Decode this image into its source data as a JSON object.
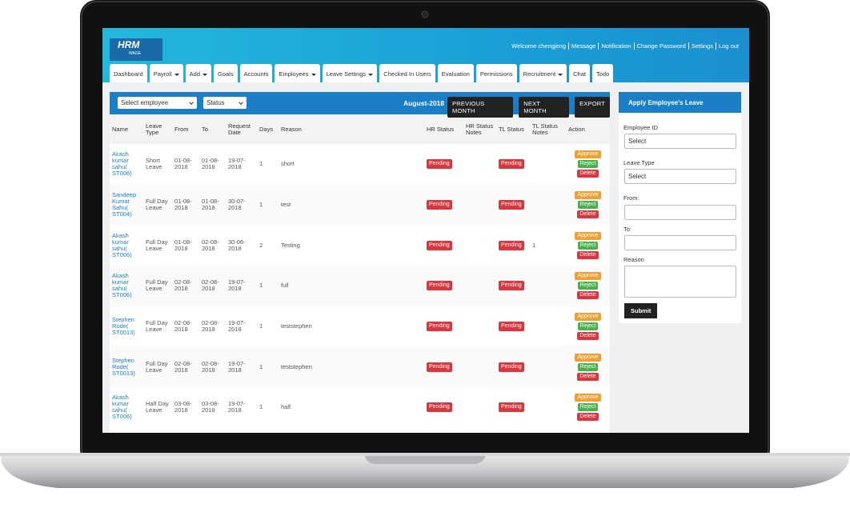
{
  "header": {
    "logo": "HRM",
    "logo_sub": "WAGE",
    "welcome": "Welcome chengjeng",
    "links": [
      "Message",
      "Notification",
      "Change Password",
      "Settings",
      "Log out"
    ]
  },
  "tabs": [
    {
      "label": "Dashboard",
      "dropdown": false
    },
    {
      "label": "Payroll",
      "dropdown": true
    },
    {
      "label": "Add",
      "dropdown": true
    },
    {
      "label": "Goals",
      "dropdown": false
    },
    {
      "label": "Accounts",
      "dropdown": false
    },
    {
      "label": "Employees",
      "dropdown": true
    },
    {
      "label": "Leave Settings",
      "dropdown": true
    },
    {
      "label": "Checked In Users",
      "dropdown": false
    },
    {
      "label": "Evaluation",
      "dropdown": false
    },
    {
      "label": "Permissions",
      "dropdown": false
    },
    {
      "label": "Recruitment",
      "dropdown": true
    },
    {
      "label": "Chat",
      "dropdown": false
    },
    {
      "label": "Todo",
      "dropdown": false
    }
  ],
  "toolbar": {
    "employee_select": "Select employee",
    "status_select": "Status",
    "month": "August-2018",
    "buttons": [
      "PREVIOUS MONTH",
      "NEXT MONTH",
      "EXPORT"
    ]
  },
  "table": {
    "columns": [
      "Name",
      "Leave Type",
      "From",
      "To",
      "Request Date",
      "Days",
      "Reason",
      "HR Status",
      "HR Status Notes",
      "TL Status",
      "TL Status Notes",
      "Action"
    ],
    "actions": [
      "Approve",
      "Reject",
      "Delete"
    ],
    "rows": [
      {
        "name": "Akash kumar sahu( ST006)",
        "leave_type": "Short Leave",
        "from": "01-08-2018",
        "to": "01-08-2018",
        "request_date": "19-07-2018",
        "days": 1,
        "reason": "short",
        "hr_status": "Pending",
        "tl_status": "Pending"
      },
      {
        "name": "Sandeep Kumar Sahu( ST004)",
        "leave_type": "Full Day Leave",
        "from": "01-08-2018",
        "to": "01-08-2018",
        "request_date": "30-07-2018",
        "days": 1,
        "reason": "test",
        "hr_status": "Pending",
        "tl_status": "Pending"
      },
      {
        "name": "Akash kumar sahu( ST006)",
        "leave_type": "Full Day Leave",
        "from": "01-08-2018",
        "to": "02-08-2018",
        "request_date": "30-06-2018",
        "days": 2,
        "reason": "Testing",
        "hr_status": "Pending",
        "tl_status": "Pending",
        "tl_status_notes": "1"
      },
      {
        "name": "Akash kumar sahu( ST006)",
        "leave_type": "Full Day Leave",
        "from": "02-08-2018",
        "to": "02-08-2018",
        "request_date": "19-07-2018",
        "days": 1,
        "reason": "full",
        "hr_status": "Pending",
        "tl_status": "Pending"
      },
      {
        "name": "Stephen Rode( ST0013)",
        "leave_type": "Full Day Leave",
        "from": "02-08-2018",
        "to": "02-08-2018",
        "request_date": "19-07-2018",
        "days": 1,
        "reason": "teststephen",
        "hr_status": "Pending",
        "tl_status": "Pending"
      },
      {
        "name": "Stephen Rode( ST0013)",
        "leave_type": "Full Day Leave",
        "from": "02-08-2018",
        "to": "02-08-2018",
        "request_date": "19-07-2018",
        "days": 1,
        "reason": "teststephen",
        "hr_status": "Pending",
        "tl_status": "Pending"
      },
      {
        "name": "Akash kumar sahu( ST006)",
        "leave_type": "Half Day Leave",
        "from": "03-08-2018",
        "to": "03-08-2018",
        "request_date": "19-07-2018",
        "days": 1,
        "reason": "half",
        "hr_status": "Pending",
        "tl_status": "Pending"
      }
    ]
  },
  "side_panel": {
    "title": "Apply Employee's Leave",
    "employee_id_label": "Employee ID",
    "employee_id_select": "Select",
    "leave_type_label": "Leave Type",
    "leave_type_select": "Select",
    "from_label": "From:",
    "to_label": "To:",
    "reason_label": "Reason",
    "submit": "Submit"
  }
}
